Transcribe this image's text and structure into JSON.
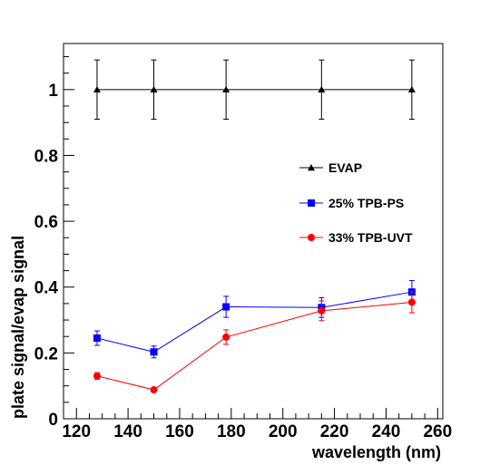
{
  "chart_data": {
    "type": "scatter",
    "title": "",
    "xlabel": "wavelength (nm)",
    "ylabel": "plate signal/evap signal",
    "xlim": [
      115,
      262
    ],
    "ylim": [
      0,
      1.14
    ],
    "xticks": [
      120,
      140,
      160,
      180,
      200,
      220,
      240,
      260
    ],
    "yticks": [
      0,
      0.2,
      0.4,
      0.6,
      0.8,
      1
    ],
    "ytick_labels": [
      "0",
      "0.2",
      "0.4",
      "0.6",
      "0.8",
      "1"
    ],
    "grid": false,
    "legend_position": "right",
    "series": [
      {
        "name": "EVAP",
        "color": "#000000",
        "marker": "triangle",
        "x": [
          128,
          150,
          178,
          215,
          250
        ],
        "y": [
          1.0,
          1.0,
          1.0,
          1.0,
          1.0
        ],
        "yerr": [
          0.09,
          0.09,
          0.09,
          0.09,
          0.09
        ]
      },
      {
        "name": "25% TPB-PS",
        "color": "#0000ff",
        "marker": "square",
        "x": [
          128,
          150,
          178,
          215,
          250
        ],
        "y": [
          0.245,
          0.203,
          0.34,
          0.338,
          0.385
        ],
        "yerr": [
          0.022,
          0.018,
          0.032,
          0.03,
          0.035
        ]
      },
      {
        "name": "33% TPB-UVT",
        "color": "#ff0000",
        "marker": "circle",
        "x": [
          128,
          150,
          178,
          215,
          250
        ],
        "y": [
          0.13,
          0.088,
          0.248,
          0.328,
          0.354
        ],
        "yerr": [
          0.01,
          0.004,
          0.022,
          0.03,
          0.032
        ]
      }
    ]
  }
}
